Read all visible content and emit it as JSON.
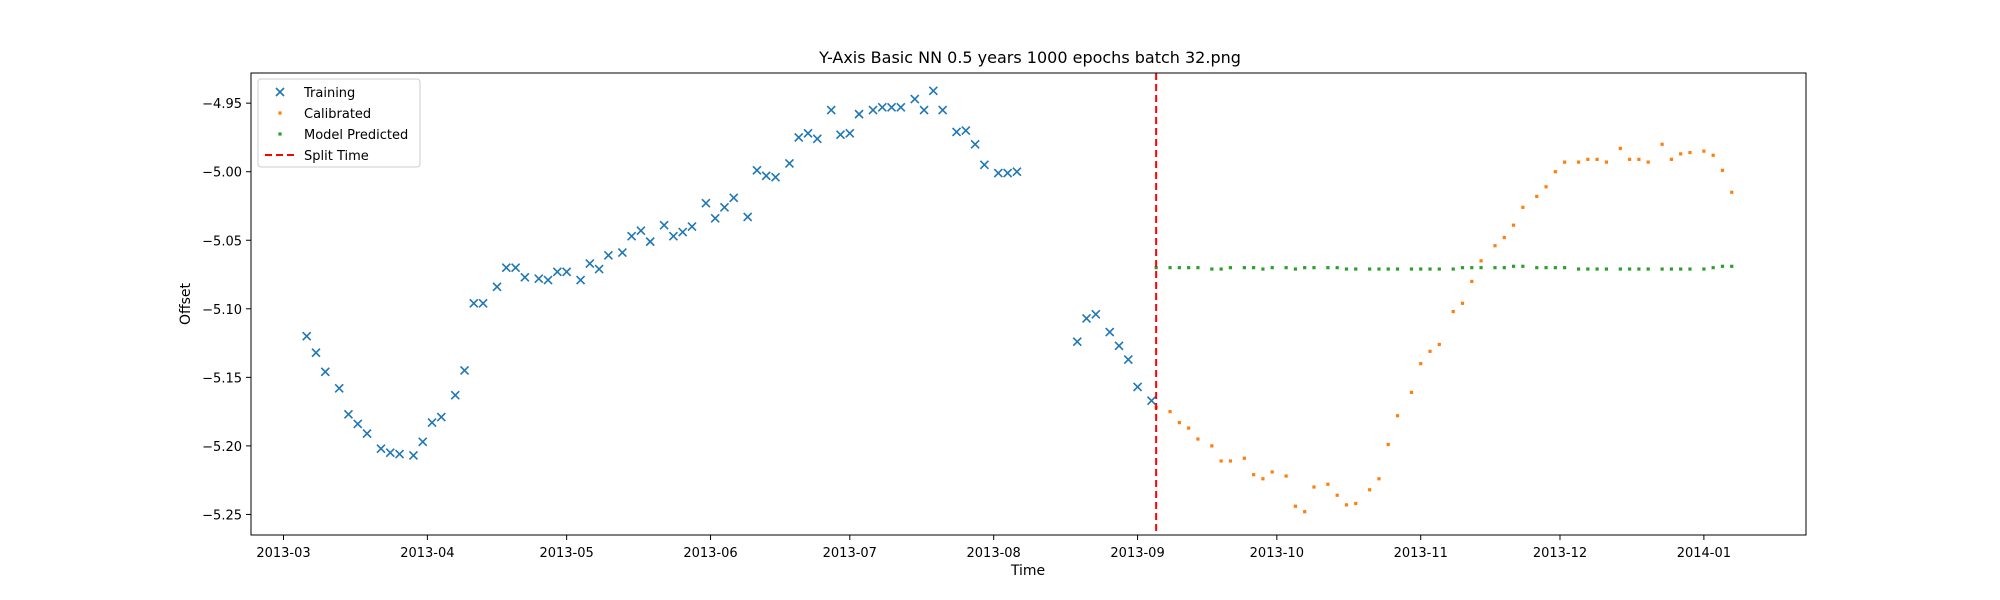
{
  "chart_data": {
    "type": "scatter",
    "title": "Y-Axis Basic NN 0.5 years 1000 epochs batch 32.png",
    "xlabel": "Time",
    "ylabel": "Offset",
    "x_type": "date",
    "xlim": [
      "2013-02-22",
      "2014-01-23"
    ],
    "ylim": [
      -5.265,
      -4.928
    ],
    "grid": false,
    "legend_position": "top-left",
    "x_ticks": [
      "2013-03-01",
      "2013-04-01",
      "2013-05-01",
      "2013-06-01",
      "2013-07-01",
      "2013-08-01",
      "2013-09-01",
      "2013-10-01",
      "2013-11-01",
      "2013-12-01",
      "2014-01-01"
    ],
    "x_tick_labels": [
      "2013-03",
      "2013-04",
      "2013-05",
      "2013-06",
      "2013-07",
      "2013-08",
      "2013-09",
      "2013-10",
      "2013-11",
      "2013-12",
      "2014-01"
    ],
    "y_ticks": [
      -4.95,
      -5.0,
      -5.05,
      -5.1,
      -5.15,
      -5.2,
      -5.25
    ],
    "y_tick_labels": [
      "−4.95",
      "−5.00",
      "−5.05",
      "−5.10",
      "−5.15",
      "−5.20",
      "−5.25"
    ],
    "split_time": "2013-09-05",
    "series": [
      {
        "name": "Training",
        "marker": "x",
        "color": "#1f77b4",
        "x": [
          "2013-03-06",
          "2013-03-08",
          "2013-03-10",
          "2013-03-13",
          "2013-03-15",
          "2013-03-17",
          "2013-03-19",
          "2013-03-22",
          "2013-03-24",
          "2013-03-26",
          "2013-03-29",
          "2013-03-31",
          "2013-04-02",
          "2013-04-04",
          "2013-04-07",
          "2013-04-09",
          "2013-04-11",
          "2013-04-13",
          "2013-04-16",
          "2013-04-18",
          "2013-04-20",
          "2013-04-22",
          "2013-04-25",
          "2013-04-27",
          "2013-04-29",
          "2013-05-01",
          "2013-05-04",
          "2013-05-06",
          "2013-05-08",
          "2013-05-10",
          "2013-05-13",
          "2013-05-15",
          "2013-05-17",
          "2013-05-19",
          "2013-05-22",
          "2013-05-24",
          "2013-05-26",
          "2013-05-28",
          "2013-05-31",
          "2013-06-02",
          "2013-06-04",
          "2013-06-06",
          "2013-06-09",
          "2013-06-11",
          "2013-06-13",
          "2013-06-15",
          "2013-06-18",
          "2013-06-20",
          "2013-06-22",
          "2013-06-24",
          "2013-06-27",
          "2013-06-29",
          "2013-07-01",
          "2013-07-03",
          "2013-07-06",
          "2013-07-08",
          "2013-07-10",
          "2013-07-12",
          "2013-07-15",
          "2013-07-17",
          "2013-07-19",
          "2013-07-21",
          "2013-07-24",
          "2013-07-26",
          "2013-07-28",
          "2013-07-30",
          "2013-08-02",
          "2013-08-04",
          "2013-08-06",
          "2013-08-19",
          "2013-08-21",
          "2013-08-23",
          "2013-08-26",
          "2013-08-28",
          "2013-08-30",
          "2013-09-01",
          "2013-09-04"
        ],
        "y": [
          -5.12,
          -5.132,
          -5.146,
          -5.158,
          -5.177,
          -5.184,
          -5.191,
          -5.202,
          -5.205,
          -5.206,
          -5.207,
          -5.197,
          -5.183,
          -5.179,
          -5.163,
          -5.145,
          -5.096,
          -5.096,
          -5.084,
          -5.07,
          -5.07,
          -5.077,
          -5.078,
          -5.079,
          -5.073,
          -5.073,
          -5.079,
          -5.067,
          -5.071,
          -5.061,
          -5.059,
          -5.047,
          -5.043,
          -5.051,
          -5.039,
          -5.047,
          -5.044,
          -5.04,
          -5.023,
          -5.034,
          -5.026,
          -5.019,
          -5.033,
          -4.999,
          -5.003,
          -5.004,
          -4.994,
          -4.975,
          -4.972,
          -4.976,
          -4.955,
          -4.973,
          -4.972,
          -4.958,
          -4.955,
          -4.953,
          -4.953,
          -4.953,
          -4.947,
          -4.955,
          -4.941,
          -4.955,
          -4.971,
          -4.97,
          -4.98,
          -4.995,
          -5.001,
          -5.001,
          -5.0,
          -5.124,
          -5.107,
          -5.104,
          -5.117,
          -5.127,
          -5.137,
          -5.157,
          -5.167
        ]
      },
      {
        "name": "Calibrated",
        "marker": "square",
        "color": "#ff7f0e",
        "x": [
          "2013-09-05",
          "2013-09-08",
          "2013-09-10",
          "2013-09-12",
          "2013-09-14",
          "2013-09-17",
          "2013-09-19",
          "2013-09-21",
          "2013-09-24",
          "2013-09-26",
          "2013-09-28",
          "2013-09-30",
          "2013-10-03",
          "2013-10-05",
          "2013-10-07",
          "2013-10-09",
          "2013-10-12",
          "2013-10-14",
          "2013-10-16",
          "2013-10-18",
          "2013-10-21",
          "2013-10-23",
          "2013-10-25",
          "2013-10-27",
          "2013-10-30",
          "2013-11-01",
          "2013-11-03",
          "2013-11-05",
          "2013-11-08",
          "2013-11-10",
          "2013-11-12",
          "2013-11-14",
          "2013-11-17",
          "2013-11-19",
          "2013-11-21",
          "2013-11-23",
          "2013-11-26",
          "2013-11-28",
          "2013-11-30",
          "2013-12-02",
          "2013-12-05",
          "2013-12-07",
          "2013-12-09",
          "2013-12-11",
          "2013-12-14",
          "2013-12-16",
          "2013-12-18",
          "2013-12-20",
          "2013-12-23",
          "2013-12-25",
          "2013-12-27",
          "2013-12-29",
          "2014-01-01",
          "2014-01-03",
          "2014-01-05",
          "2014-01-07"
        ],
        "y": [
          -5.172,
          -5.175,
          -5.183,
          -5.187,
          -5.195,
          -5.2,
          -5.211,
          -5.211,
          -5.209,
          -5.221,
          -5.224,
          -5.219,
          -5.222,
          -5.244,
          -5.248,
          -5.23,
          -5.228,
          -5.236,
          -5.243,
          -5.242,
          -5.232,
          -5.224,
          -5.199,
          -5.178,
          -5.161,
          -5.14,
          -5.131,
          -5.126,
          -5.102,
          -5.096,
          -5.08,
          -5.065,
          -5.054,
          -5.048,
          -5.039,
          -5.026,
          -5.018,
          -5.011,
          -5.0,
          -4.993,
          -4.993,
          -4.991,
          -4.991,
          -4.993,
          -4.983,
          -4.991,
          -4.991,
          -4.993,
          -4.98,
          -4.991,
          -4.987,
          -4.986,
          -4.985,
          -4.988,
          -4.999,
          -5.015
        ]
      },
      {
        "name": "Model Predicted",
        "marker": "square",
        "color": "#2ca02c",
        "x": [
          "2013-09-05",
          "2013-09-08",
          "2013-09-10",
          "2013-09-12",
          "2013-09-14",
          "2013-09-17",
          "2013-09-19",
          "2013-09-21",
          "2013-09-24",
          "2013-09-26",
          "2013-09-28",
          "2013-09-30",
          "2013-10-03",
          "2013-10-05",
          "2013-10-07",
          "2013-10-09",
          "2013-10-12",
          "2013-10-14",
          "2013-10-16",
          "2013-10-18",
          "2013-10-21",
          "2013-10-23",
          "2013-10-25",
          "2013-10-27",
          "2013-10-30",
          "2013-11-01",
          "2013-11-03",
          "2013-11-05",
          "2013-11-08",
          "2013-11-10",
          "2013-11-12",
          "2013-11-14",
          "2013-11-17",
          "2013-11-19",
          "2013-11-21",
          "2013-11-23",
          "2013-11-26",
          "2013-11-28",
          "2013-11-30",
          "2013-12-02",
          "2013-12-05",
          "2013-12-07",
          "2013-12-09",
          "2013-12-11",
          "2013-12-14",
          "2013-12-16",
          "2013-12-18",
          "2013-12-20",
          "2013-12-23",
          "2013-12-25",
          "2013-12-27",
          "2013-12-29",
          "2014-01-01",
          "2014-01-03",
          "2014-01-05",
          "2014-01-07"
        ],
        "y": [
          -5.07,
          -5.07,
          -5.07,
          -5.07,
          -5.07,
          -5.071,
          -5.071,
          -5.07,
          -5.07,
          -5.07,
          -5.071,
          -5.07,
          -5.07,
          -5.071,
          -5.07,
          -5.07,
          -5.07,
          -5.07,
          -5.071,
          -5.071,
          -5.071,
          -5.071,
          -5.071,
          -5.071,
          -5.071,
          -5.071,
          -5.071,
          -5.071,
          -5.071,
          -5.07,
          -5.07,
          -5.07,
          -5.07,
          -5.07,
          -5.069,
          -5.069,
          -5.07,
          -5.07,
          -5.07,
          -5.07,
          -5.071,
          -5.071,
          -5.071,
          -5.071,
          -5.071,
          -5.071,
          -5.071,
          -5.071,
          -5.071,
          -5.071,
          -5.071,
          -5.071,
          -5.071,
          -5.07,
          -5.069,
          -5.069
        ]
      }
    ],
    "legend": [
      {
        "label": "Training",
        "marker": "x",
        "color": "#1f77b4"
      },
      {
        "label": "Calibrated",
        "marker": "square",
        "color": "#ff7f0e"
      },
      {
        "label": "Model Predicted",
        "marker": "square",
        "color": "#2ca02c"
      },
      {
        "label": "Split Time",
        "marker": "dashed-line",
        "color": "#d62728"
      }
    ]
  }
}
